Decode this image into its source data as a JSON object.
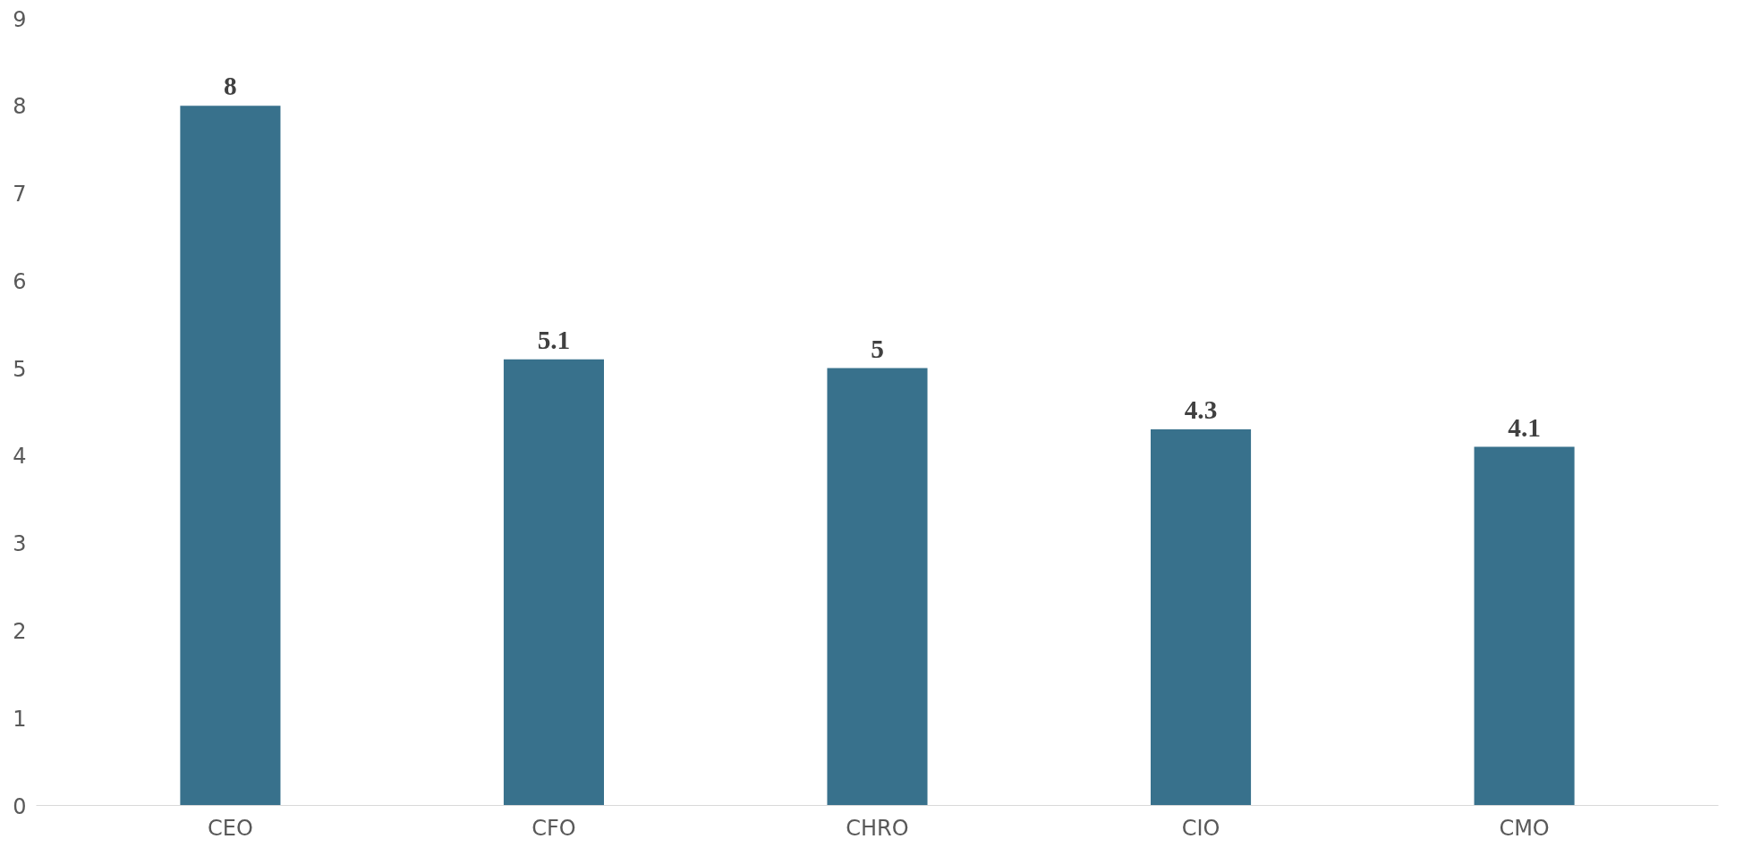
{
  "chart_data": {
    "type": "bar",
    "categories": [
      "CEO",
      "CFO",
      "CHRO",
      "CIO",
      "CMO"
    ],
    "values": [
      8,
      5.1,
      5,
      4.3,
      4.1
    ],
    "color": "#38718c",
    "ylim": [
      0,
      9
    ],
    "yticks": [
      0,
      1,
      2,
      3,
      4,
      5,
      6,
      7,
      8,
      9
    ],
    "grid": false,
    "data_labels": true
  }
}
